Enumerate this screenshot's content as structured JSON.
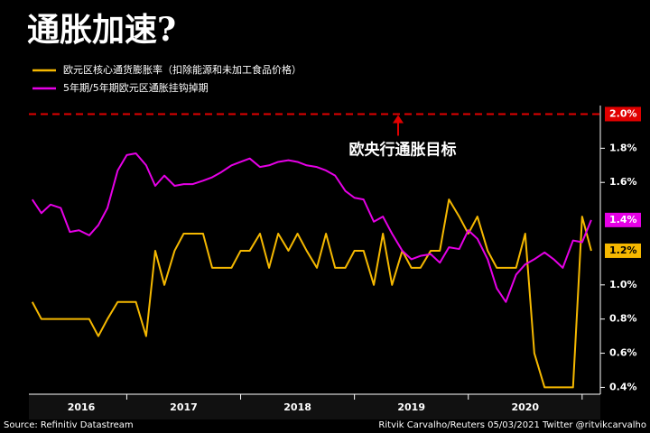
{
  "chart_data": {
    "type": "line",
    "title": "通胀加速?",
    "source": "Source: Refinitiv Datastream",
    "credit": "Ritvik Carvalho/Reuters 05/03/2021 Twitter @ritvikcarvalho",
    "x": [
      2016.17,
      2016.25,
      2016.33,
      2016.42,
      2016.5,
      2016.58,
      2016.67,
      2016.75,
      2016.83,
      2016.92,
      2017.0,
      2017.08,
      2017.17,
      2017.25,
      2017.33,
      2017.42,
      2017.5,
      2017.58,
      2017.67,
      2017.75,
      2017.83,
      2017.92,
      2018.0,
      2018.08,
      2018.17,
      2018.25,
      2018.33,
      2018.42,
      2018.5,
      2018.58,
      2018.67,
      2018.75,
      2018.83,
      2018.92,
      2019.0,
      2019.08,
      2019.17,
      2019.25,
      2019.33,
      2019.42,
      2019.5,
      2019.58,
      2019.67,
      2019.75,
      2019.83,
      2019.92,
      2020.0,
      2020.08,
      2020.17,
      2020.25,
      2020.33,
      2020.42,
      2020.5,
      2020.58,
      2020.67,
      2020.75,
      2020.83,
      2020.92,
      2021.0,
      2021.08
    ],
    "series": [
      {
        "name": "欧元区核心通货膨胀率（扣除能源和未加工食品价格）",
        "color": "#f5b800",
        "end_label": "1.2%",
        "values": [
          0.9,
          0.8,
          0.8,
          0.8,
          0.8,
          0.8,
          0.8,
          0.7,
          0.8,
          0.9,
          0.9,
          0.9,
          0.7,
          1.2,
          1.0,
          1.2,
          1.3,
          1.3,
          1.3,
          1.1,
          1.1,
          1.1,
          1.2,
          1.2,
          1.3,
          1.1,
          1.3,
          1.2,
          1.3,
          1.2,
          1.1,
          1.3,
          1.1,
          1.1,
          1.2,
          1.2,
          1.0,
          1.3,
          1.0,
          1.2,
          1.1,
          1.1,
          1.2,
          1.2,
          1.5,
          1.4,
          1.3,
          1.4,
          1.2,
          1.1,
          1.1,
          1.1,
          1.3,
          0.6,
          0.4,
          0.4,
          0.4,
          0.4,
          1.4,
          1.2
        ]
      },
      {
        "name": "5年期/5年期欧元区通胀挂钩掉期",
        "color": "#e600e6",
        "end_label": "1.4%",
        "values": [
          1.5,
          1.42,
          1.47,
          1.45,
          1.31,
          1.32,
          1.29,
          1.35,
          1.45,
          1.67,
          1.76,
          1.77,
          1.7,
          1.58,
          1.64,
          1.58,
          1.59,
          1.59,
          1.61,
          1.63,
          1.66,
          1.7,
          1.72,
          1.74,
          1.69,
          1.7,
          1.72,
          1.73,
          1.72,
          1.7,
          1.69,
          1.67,
          1.64,
          1.55,
          1.51,
          1.5,
          1.37,
          1.4,
          1.3,
          1.2,
          1.15,
          1.17,
          1.18,
          1.13,
          1.22,
          1.21,
          1.32,
          1.27,
          1.15,
          0.98,
          0.9,
          1.06,
          1.12,
          1.15,
          1.19,
          1.15,
          1.1,
          1.26,
          1.25,
          1.38
        ]
      }
    ],
    "target": {
      "value": 2.0,
      "label": "2.0%",
      "text": "欧央行通胀目标",
      "color": "#e00000"
    },
    "xlim": [
      2016.14,
      2021.16
    ],
    "xticks": [
      2017,
      2018,
      2019,
      2020,
      2021
    ],
    "year_labels": [
      {
        "value": 2016.6,
        "label": "2016"
      },
      {
        "value": 2017.5,
        "label": "2017"
      },
      {
        "value": 2018.5,
        "label": "2018"
      },
      {
        "value": 2019.5,
        "label": "2019"
      },
      {
        "value": 2020.5,
        "label": "2020"
      }
    ],
    "ylim": [
      0.36,
      2.05
    ],
    "yticks": [
      {
        "value": 0.4,
        "label": "0.4%"
      },
      {
        "value": 0.6,
        "label": "0.6%"
      },
      {
        "value": 0.8,
        "label": "0.8%"
      },
      {
        "value": 1.0,
        "label": "1.0%"
      },
      {
        "value": 1.6,
        "label": "1.6%"
      },
      {
        "value": 1.8,
        "label": "1.8%"
      }
    ],
    "grid": false
  }
}
